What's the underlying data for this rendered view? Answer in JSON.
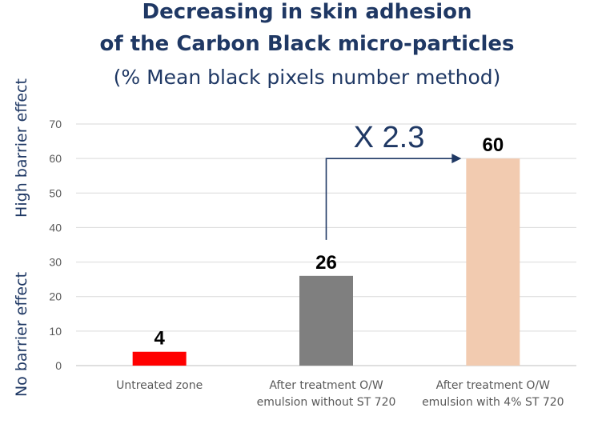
{
  "title_line1": "Decreasing in skin adhesion",
  "title_line2": "of the Carbon Black micro-particles",
  "subtitle": "(% Mean black pixels number method)",
  "y_annotation_high": "High barrier effect",
  "y_annotation_low": "No barrier effect",
  "comparison_label": "X 2.3",
  "colors": {
    "title": "#1f3864",
    "annotation": "#1f3864",
    "grid": "#d9d9d9",
    "tick": "#595959"
  },
  "chart_data": {
    "type": "bar",
    "title": "Decreasing in skin adhesion of the Carbon Black micro-particles",
    "subtitle": "(% Mean black pixels number method)",
    "categories": [
      [
        "Untreated zone"
      ],
      [
        "After treatment O/W",
        "emulsion without ST 720"
      ],
      [
        "After treatment O/W",
        "emulsion with 4%  ST 720"
      ]
    ],
    "values": [
      4,
      26,
      60
    ],
    "value_labels": [
      "4",
      "26",
      "60"
    ],
    "bar_colors": [
      "#ff0000",
      "#7f7f7f",
      "#f2cbb0"
    ],
    "ylim": [
      0,
      70
    ],
    "yticks": [
      0,
      10,
      20,
      30,
      40,
      50,
      60,
      70
    ],
    "grid": true,
    "legend": "none",
    "annotation": {
      "text": "X 2.3",
      "from_category": 1,
      "to_category": 2
    }
  }
}
